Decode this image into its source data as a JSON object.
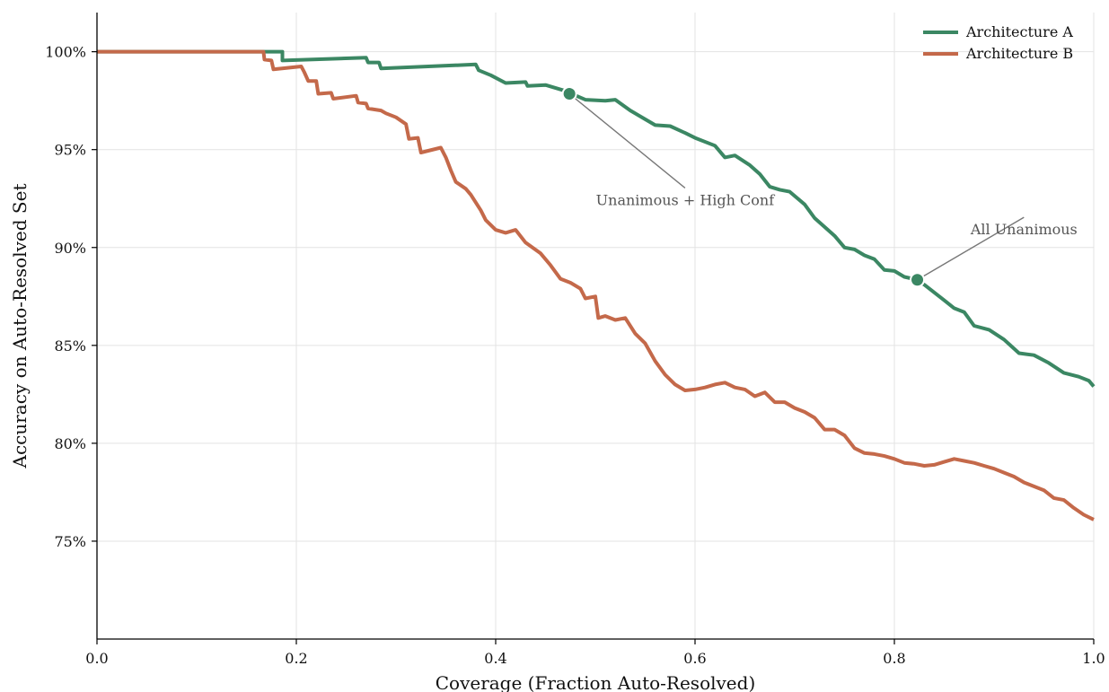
{
  "chart_data": {
    "type": "line",
    "title": "",
    "xlabel": "Coverage (Fraction Auto-Resolved)",
    "ylabel": "Accuracy on Auto-Resolved Set",
    "xlim": [
      0.0,
      1.0
    ],
    "ylim": [
      70.0,
      102.0
    ],
    "x_ticks": [
      0.0,
      0.2,
      0.4,
      0.6,
      0.8,
      1.0
    ],
    "x_tick_labels": [
      "0.0",
      "0.2",
      "0.4",
      "0.6",
      "0.8",
      "1.0"
    ],
    "y_ticks": [
      75,
      80,
      85,
      90,
      95,
      100
    ],
    "y_tick_labels": [
      "75%",
      "80%",
      "85%",
      "90%",
      "95%",
      "100%"
    ],
    "grid": true,
    "legend_position": "top-right",
    "series": [
      {
        "name": "Architecture A",
        "color": "#3b8763",
        "points": [
          [
            0.0,
            100.0
          ],
          [
            0.17,
            100.0
          ],
          [
            0.186,
            100.0
          ],
          [
            0.186,
            99.55
          ],
          [
            0.27,
            99.7
          ],
          [
            0.272,
            99.45
          ],
          [
            0.283,
            99.45
          ],
          [
            0.285,
            99.15
          ],
          [
            0.38,
            99.35
          ],
          [
            0.383,
            99.05
          ],
          [
            0.395,
            98.8
          ],
          [
            0.41,
            98.4
          ],
          [
            0.43,
            98.45
          ],
          [
            0.432,
            98.25
          ],
          [
            0.45,
            98.3
          ],
          [
            0.47,
            98.0
          ],
          [
            0.475,
            97.88
          ],
          [
            0.49,
            97.55
          ],
          [
            0.51,
            97.5
          ],
          [
            0.52,
            97.55
          ],
          [
            0.535,
            97.0
          ],
          [
            0.55,
            96.55
          ],
          [
            0.56,
            96.25
          ],
          [
            0.575,
            96.2
          ],
          [
            0.59,
            95.85
          ],
          [
            0.6,
            95.6
          ],
          [
            0.62,
            95.2
          ],
          [
            0.63,
            94.6
          ],
          [
            0.64,
            94.7
          ],
          [
            0.655,
            94.2
          ],
          [
            0.665,
            93.75
          ],
          [
            0.675,
            93.1
          ],
          [
            0.685,
            92.95
          ],
          [
            0.695,
            92.85
          ],
          [
            0.71,
            92.2
          ],
          [
            0.72,
            91.5
          ],
          [
            0.74,
            90.6
          ],
          [
            0.75,
            90.0
          ],
          [
            0.76,
            89.9
          ],
          [
            0.77,
            89.6
          ],
          [
            0.78,
            89.4
          ],
          [
            0.79,
            88.85
          ],
          [
            0.8,
            88.8
          ],
          [
            0.81,
            88.5
          ],
          [
            0.823,
            88.35
          ],
          [
            0.83,
            88.1
          ],
          [
            0.85,
            87.3
          ],
          [
            0.86,
            86.9
          ],
          [
            0.87,
            86.7
          ],
          [
            0.88,
            86.0
          ],
          [
            0.895,
            85.8
          ],
          [
            0.91,
            85.3
          ],
          [
            0.925,
            84.6
          ],
          [
            0.94,
            84.5
          ],
          [
            0.955,
            84.1
          ],
          [
            0.97,
            83.6
          ],
          [
            0.985,
            83.4
          ],
          [
            0.995,
            83.2
          ],
          [
            1.0,
            82.9
          ]
        ]
      },
      {
        "name": "Architecture B",
        "color": "#c4694a",
        "points": [
          [
            0.0,
            100.0
          ],
          [
            0.167,
            100.0
          ],
          [
            0.168,
            99.6
          ],
          [
            0.175,
            99.55
          ],
          [
            0.177,
            99.1
          ],
          [
            0.205,
            99.25
          ],
          [
            0.208,
            98.95
          ],
          [
            0.212,
            98.5
          ],
          [
            0.22,
            98.5
          ],
          [
            0.222,
            97.85
          ],
          [
            0.235,
            97.9
          ],
          [
            0.237,
            97.6
          ],
          [
            0.26,
            97.75
          ],
          [
            0.262,
            97.4
          ],
          [
            0.27,
            97.35
          ],
          [
            0.272,
            97.1
          ],
          [
            0.285,
            97.0
          ],
          [
            0.29,
            96.85
          ],
          [
            0.3,
            96.65
          ],
          [
            0.31,
            96.3
          ],
          [
            0.313,
            95.55
          ],
          [
            0.322,
            95.6
          ],
          [
            0.325,
            94.85
          ],
          [
            0.345,
            95.1
          ],
          [
            0.35,
            94.6
          ],
          [
            0.355,
            93.95
          ],
          [
            0.36,
            93.35
          ],
          [
            0.37,
            93.0
          ],
          [
            0.375,
            92.7
          ],
          [
            0.385,
            91.9
          ],
          [
            0.39,
            91.4
          ],
          [
            0.4,
            90.9
          ],
          [
            0.41,
            90.75
          ],
          [
            0.42,
            90.9
          ],
          [
            0.43,
            90.25
          ],
          [
            0.445,
            89.7
          ],
          [
            0.455,
            89.1
          ],
          [
            0.465,
            88.4
          ],
          [
            0.475,
            88.2
          ],
          [
            0.485,
            87.9
          ],
          [
            0.49,
            87.4
          ],
          [
            0.5,
            87.5
          ],
          [
            0.503,
            86.4
          ],
          [
            0.51,
            86.5
          ],
          [
            0.52,
            86.3
          ],
          [
            0.53,
            86.4
          ],
          [
            0.54,
            85.6
          ],
          [
            0.55,
            85.1
          ],
          [
            0.56,
            84.2
          ],
          [
            0.57,
            83.5
          ],
          [
            0.58,
            83.0
          ],
          [
            0.59,
            82.7
          ],
          [
            0.6,
            82.75
          ],
          [
            0.61,
            82.85
          ],
          [
            0.62,
            83.0
          ],
          [
            0.63,
            83.1
          ],
          [
            0.64,
            82.85
          ],
          [
            0.65,
            82.75
          ],
          [
            0.66,
            82.4
          ],
          [
            0.67,
            82.6
          ],
          [
            0.68,
            82.1
          ],
          [
            0.69,
            82.1
          ],
          [
            0.7,
            81.8
          ],
          [
            0.71,
            81.6
          ],
          [
            0.72,
            81.3
          ],
          [
            0.73,
            80.7
          ],
          [
            0.74,
            80.7
          ],
          [
            0.75,
            80.4
          ],
          [
            0.76,
            79.75
          ],
          [
            0.77,
            79.5
          ],
          [
            0.78,
            79.45
          ],
          [
            0.79,
            79.35
          ],
          [
            0.8,
            79.2
          ],
          [
            0.81,
            79.0
          ],
          [
            0.82,
            78.95
          ],
          [
            0.83,
            78.85
          ],
          [
            0.84,
            78.9
          ],
          [
            0.85,
            79.05
          ],
          [
            0.86,
            79.2
          ],
          [
            0.87,
            79.1
          ],
          [
            0.88,
            79.0
          ],
          [
            0.89,
            78.85
          ],
          [
            0.9,
            78.7
          ],
          [
            0.91,
            78.5
          ],
          [
            0.92,
            78.3
          ],
          [
            0.93,
            78.0
          ],
          [
            0.94,
            77.8
          ],
          [
            0.95,
            77.6
          ],
          [
            0.96,
            77.2
          ],
          [
            0.97,
            77.1
          ],
          [
            0.98,
            76.7
          ],
          [
            0.99,
            76.35
          ],
          [
            1.0,
            76.1
          ]
        ]
      }
    ],
    "annotations": [
      {
        "text": "Unanimous + High Conf",
        "point": [
          0.474,
          97.85
        ],
        "text_at": [
          0.59,
          92.4
        ],
        "color": "#3b8763"
      },
      {
        "text": "All Unanimous",
        "point": [
          0.823,
          88.35
        ],
        "text_at": [
          0.93,
          90.9
        ],
        "color": "#3b8763"
      }
    ]
  }
}
